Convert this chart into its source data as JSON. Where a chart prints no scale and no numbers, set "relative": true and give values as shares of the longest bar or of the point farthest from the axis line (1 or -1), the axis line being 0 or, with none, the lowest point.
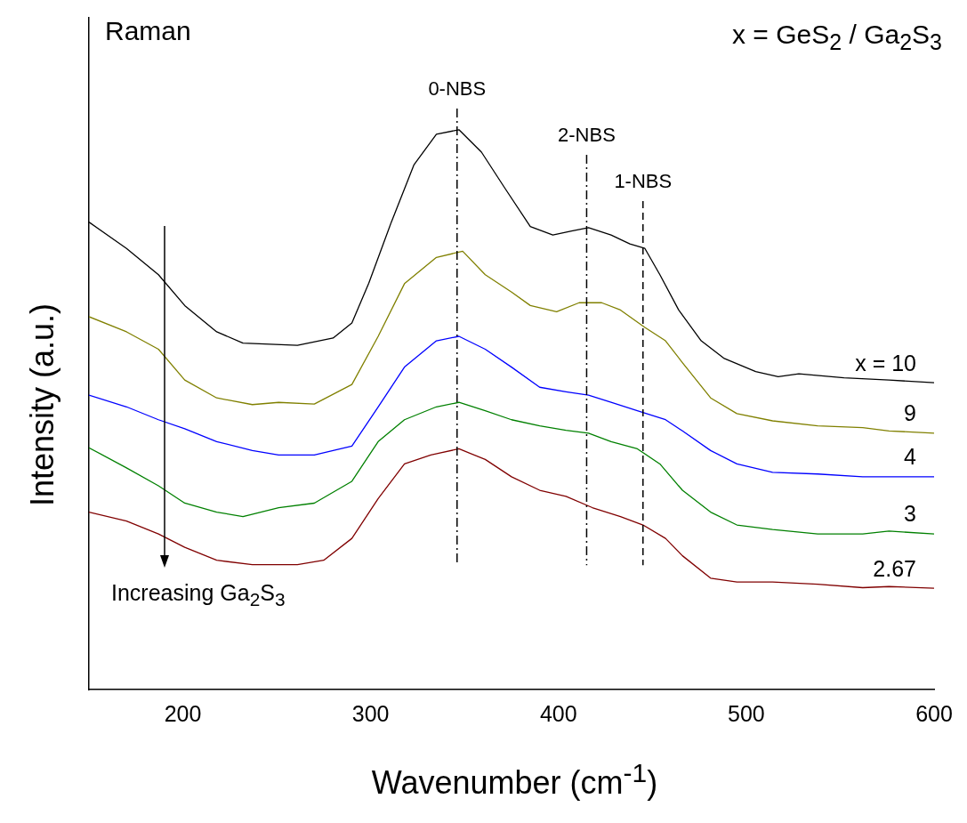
{
  "chart_data": {
    "type": "line",
    "relative": true,
    "xlabel": "Wavenumber (cm$^{-1}$)",
    "ylabel": "Intensity (a.u.)",
    "xlim": [
      150,
      600
    ],
    "xticks": [
      200,
      300,
      400,
      500,
      600
    ],
    "tick_labels": "x",
    "grid": false,
    "legend": false,
    "marker": "none",
    "line_style": "solid",
    "annotations": [
      "Raman",
      "x = GeS$_{2}$ / Ga$_{2}$S$_{3}$",
      "Increasing Ga$_{2}$S$_{3}$"
    ],
    "ref_lines": [
      {
        "axis": "x",
        "value": 346,
        "label": "0-NBS"
      },
      {
        "axis": "x",
        "value": 415,
        "label": "2-NBS"
      },
      {
        "axis": "x",
        "value": 445,
        "label": "1-NBS",
        "line_style": "dashed"
      }
    ],
    "series": [
      {
        "name": "x = 10",
        "color": "#000000",
        "x": [
          150,
          170,
          187,
          201,
          218,
          232,
          261,
          280,
          290,
          299,
          311,
          323,
          335,
          347,
          359,
          371,
          385,
          397,
          407,
          416,
          428,
          438,
          446,
          454,
          464,
          476,
          488,
          505,
          517,
          528,
          552,
          576,
          600
        ],
        "values": [
          0.835,
          0.788,
          0.741,
          0.686,
          0.639,
          0.619,
          0.615,
          0.628,
          0.655,
          0.726,
          0.835,
          0.937,
          0.992,
          1.0,
          0.96,
          0.898,
          0.827,
          0.812,
          0.819,
          0.825,
          0.812,
          0.796,
          0.788,
          0.741,
          0.678,
          0.623,
          0.592,
          0.568,
          0.559,
          0.564,
          0.557,
          0.553,
          0.548
        ]
      },
      {
        "name": "9",
        "color": "#808000",
        "x": [
          150,
          170,
          187,
          201,
          218,
          237,
          251,
          270,
          290,
          304,
          318,
          335,
          349,
          361,
          375,
          385,
          399,
          411,
          423,
          433,
          446,
          457,
          466,
          481,
          495,
          514,
          538,
          562,
          576,
          600
        ],
        "values": [
          0.666,
          0.639,
          0.608,
          0.553,
          0.521,
          0.509,
          0.513,
          0.51,
          0.545,
          0.631,
          0.725,
          0.772,
          0.783,
          0.741,
          0.71,
          0.686,
          0.675,
          0.691,
          0.691,
          0.678,
          0.647,
          0.623,
          0.584,
          0.521,
          0.493,
          0.48,
          0.471,
          0.468,
          0.462,
          0.458
        ]
      },
      {
        "name": "4",
        "color": "#0000ff",
        "x": [
          150,
          170,
          187,
          201,
          218,
          237,
          251,
          270,
          290,
          304,
          318,
          335,
          347,
          361,
          375,
          390,
          404,
          416,
          428,
          442,
          457,
          466,
          481,
          495,
          514,
          538,
          562,
          576,
          600
        ],
        "values": [
          0.526,
          0.505,
          0.482,
          0.466,
          0.443,
          0.427,
          0.419,
          0.419,
          0.435,
          0.505,
          0.576,
          0.623,
          0.631,
          0.608,
          0.576,
          0.54,
          0.532,
          0.526,
          0.513,
          0.498,
          0.482,
          0.462,
          0.427,
          0.403,
          0.388,
          0.385,
          0.38,
          0.38,
          0.38
        ]
      },
      {
        "name": "3",
        "color": "#008000",
        "x": [
          150,
          170,
          187,
          201,
          218,
          232,
          251,
          270,
          290,
          304,
          318,
          335,
          347,
          361,
          375,
          390,
          404,
          416,
          428,
          442,
          454,
          466,
          481,
          495,
          514,
          538,
          562,
          576,
          600
        ],
        "values": [
          0.432,
          0.396,
          0.364,
          0.333,
          0.317,
          0.309,
          0.325,
          0.333,
          0.372,
          0.443,
          0.482,
          0.505,
          0.513,
          0.498,
          0.482,
          0.471,
          0.463,
          0.458,
          0.443,
          0.43,
          0.403,
          0.356,
          0.317,
          0.294,
          0.286,
          0.278,
          0.278,
          0.283,
          0.278
        ]
      },
      {
        "name": "2.67",
        "color": "#800000",
        "x": [
          150,
          170,
          187,
          201,
          218,
          237,
          261,
          275,
          290,
          304,
          318,
          332,
          347,
          361,
          375,
          390,
          404,
          418,
          433,
          445,
          457,
          466,
          481,
          495,
          514,
          538,
          562,
          576,
          600
        ],
        "values": [
          0.317,
          0.301,
          0.278,
          0.254,
          0.231,
          0.223,
          0.223,
          0.231,
          0.27,
          0.341,
          0.403,
          0.419,
          0.43,
          0.411,
          0.38,
          0.356,
          0.345,
          0.325,
          0.309,
          0.294,
          0.27,
          0.239,
          0.199,
          0.192,
          0.192,
          0.188,
          0.182,
          0.184,
          0.181
        ]
      }
    ]
  }
}
